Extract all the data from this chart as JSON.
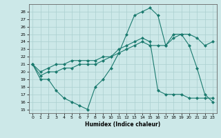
{
  "xlabel": "Humidex (Indice chaleur)",
  "bg_color": "#cce8e8",
  "grid_color": "#aacfcf",
  "line_color": "#1a7a6e",
  "xlim": [
    -0.5,
    23.5
  ],
  "ylim": [
    14.5,
    29
  ],
  "yticks": [
    15,
    16,
    17,
    18,
    19,
    20,
    21,
    22,
    23,
    24,
    25,
    26,
    27,
    28
  ],
  "xticks": [
    0,
    1,
    2,
    3,
    4,
    5,
    6,
    7,
    8,
    9,
    10,
    11,
    12,
    13,
    14,
    15,
    16,
    17,
    18,
    19,
    20,
    21,
    22,
    23
  ],
  "line1_x": [
    0,
    1,
    2,
    3,
    4,
    5,
    6,
    7,
    8,
    9,
    10,
    11,
    12,
    13,
    14,
    15,
    16,
    17,
    18,
    19,
    20,
    21,
    22,
    23
  ],
  "line1_y": [
    21,
    19,
    19,
    17.5,
    16.5,
    16,
    15.5,
    15,
    18,
    19,
    20.5,
    22.5,
    25,
    27.5,
    28,
    28.5,
    27.5,
    23.5,
    25,
    25,
    23.5,
    20.5,
    17,
    16
  ],
  "line2_x": [
    0,
    1,
    2,
    3,
    4,
    5,
    6,
    7,
    8,
    9,
    10,
    11,
    12,
    13,
    14,
    15,
    16,
    17,
    18,
    19,
    20,
    21,
    22,
    23
  ],
  "line2_y": [
    21,
    20,
    20.5,
    21,
    21,
    21.5,
    21.5,
    21.5,
    21.5,
    22,
    22,
    22.5,
    23,
    23.5,
    24,
    23.5,
    23.5,
    23.5,
    24.5,
    25,
    25,
    24.5,
    23.5,
    24
  ],
  "line3_x": [
    0,
    1,
    2,
    3,
    4,
    5,
    6,
    7,
    8,
    9,
    10,
    11,
    12,
    13,
    14,
    15,
    16,
    17,
    18,
    19,
    20,
    21,
    22,
    23
  ],
  "line3_y": [
    21,
    19.5,
    20,
    20,
    20.5,
    20.5,
    21,
    21,
    21,
    21.5,
    22,
    23,
    23.5,
    24,
    24.5,
    24,
    17.5,
    17,
    17,
    17,
    16.5,
    16.5,
    16.5,
    16.5
  ]
}
